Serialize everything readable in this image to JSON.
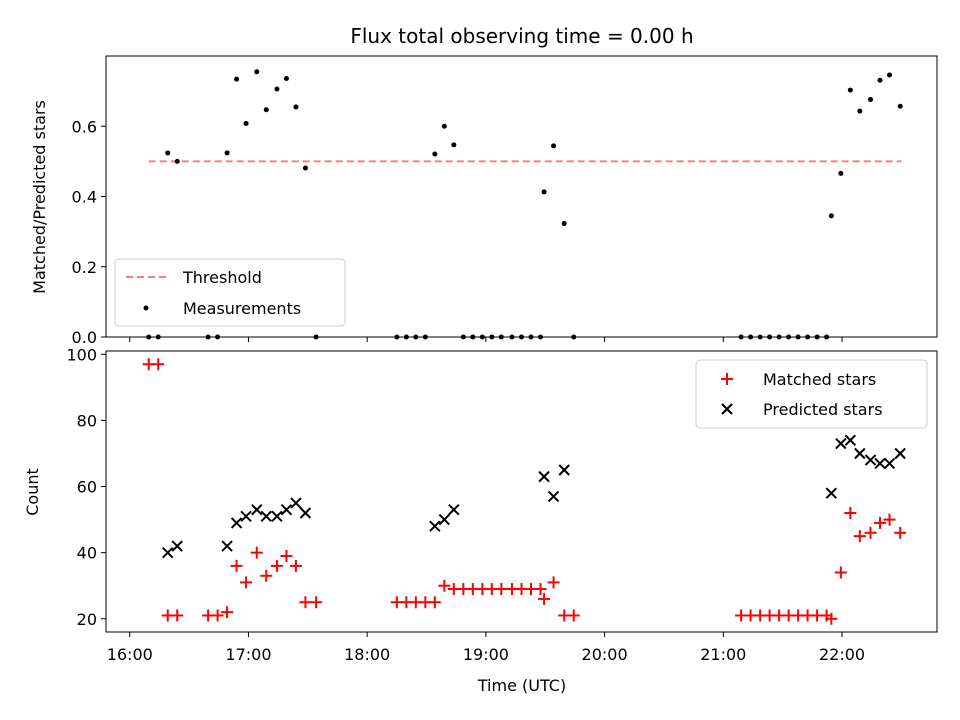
{
  "chart_data": {
    "title": "Flux total observing time = 0.00 h",
    "xlabel": "Time (UTC)",
    "x_unit": "hour of day (UTC)",
    "xlim": [
      15.8,
      22.8
    ],
    "xticks": [
      16,
      17,
      18,
      19,
      20,
      21,
      22
    ],
    "xtick_labels": [
      "16:00",
      "17:00",
      "18:00",
      "19:00",
      "20:00",
      "21:00",
      "22:00"
    ],
    "panels": [
      {
        "type": "scatter",
        "ylabel": "Matched/Predicted stars",
        "ylim": [
          0,
          0.8
        ],
        "yticks": [
          0.0,
          0.2,
          0.4,
          0.6
        ],
        "ytick_labels": [
          "0.0",
          "0.2",
          "0.4",
          "0.6"
        ],
        "legend_position": "lower-left",
        "threshold": {
          "name": "Threshold",
          "y": 0.5,
          "x_start": 16.16,
          "x_end": 22.5,
          "color": "#f77f7f",
          "style": "dashed"
        },
        "series": [
          {
            "name": "Measurements",
            "color": "#000000",
            "marker": "dot",
            "x": [
              16.16,
              16.24,
              16.32,
              16.4,
              16.66,
              16.74,
              16.82,
              16.9,
              16.98,
              17.07,
              17.15,
              17.24,
              17.32,
              17.4,
              17.48,
              17.57,
              18.25,
              18.33,
              18.41,
              18.49,
              18.57,
              18.65,
              18.73,
              18.81,
              18.89,
              18.97,
              19.05,
              19.13,
              19.22,
              19.3,
              19.38,
              19.46,
              19.49,
              19.57,
              19.66,
              19.74,
              21.15,
              21.23,
              21.31,
              21.39,
              21.47,
              21.55,
              21.63,
              21.71,
              21.79,
              21.87,
              21.91,
              21.99,
              22.07,
              22.15,
              22.24,
              22.32,
              22.4,
              22.49
            ],
            "y": [
              0.0,
              0.0,
              0.524,
              0.5,
              0.0,
              0.0,
              0.524,
              0.734,
              0.608,
              0.755,
              0.647,
              0.706,
              0.736,
              0.655,
              0.481,
              0.0,
              0.0,
              0.0,
              0.0,
              0.0,
              0.521,
              0.6,
              0.547,
              0.0,
              0.0,
              0.0,
              0.0,
              0.0,
              0.0,
              0.0,
              0.0,
              0.0,
              0.413,
              0.544,
              0.323,
              0.0,
              0.0,
              0.0,
              0.0,
              0.0,
              0.0,
              0.0,
              0.0,
              0.0,
              0.0,
              0.0,
              0.345,
              0.466,
              0.703,
              0.643,
              0.676,
              0.731,
              0.746,
              0.657
            ]
          }
        ]
      },
      {
        "type": "scatter",
        "ylabel": "Count",
        "ylim": [
          16,
          101
        ],
        "yticks": [
          20,
          40,
          60,
          80,
          100
        ],
        "ytick_labels": [
          "20",
          "40",
          "60",
          "80",
          "100"
        ],
        "legend_position": "upper-right",
        "series": [
          {
            "name": "Matched stars",
            "color": "#ff0000",
            "marker": "plus",
            "x": [
              16.16,
              16.24,
              16.32,
              16.4,
              16.66,
              16.74,
              16.82,
              16.9,
              16.98,
              17.07,
              17.15,
              17.24,
              17.32,
              17.4,
              17.48,
              17.57,
              18.25,
              18.33,
              18.41,
              18.49,
              18.57,
              18.65,
              18.73,
              18.81,
              18.89,
              18.97,
              19.05,
              19.13,
              19.22,
              19.3,
              19.38,
              19.46,
              19.49,
              19.57,
              19.66,
              19.74,
              21.15,
              21.23,
              21.31,
              21.39,
              21.47,
              21.55,
              21.63,
              21.71,
              21.79,
              21.87,
              21.91,
              21.99,
              22.07,
              22.15,
              22.24,
              22.32,
              22.4,
              22.49
            ],
            "y": [
              97,
              97,
              21,
              21,
              21,
              21,
              22,
              36,
              31,
              40,
              33,
              36,
              39,
              36,
              25,
              25,
              25,
              25,
              25,
              25,
              25,
              30,
              29,
              29,
              29,
              29,
              29,
              29,
              29,
              29,
              29,
              29,
              26,
              31,
              21,
              21,
              21,
              21,
              21,
              21,
              21,
              21,
              21,
              21,
              21,
              21,
              20,
              34,
              52,
              45,
              46,
              49,
              50,
              46
            ]
          },
          {
            "name": "Predicted stars",
            "color": "#000000",
            "marker": "x",
            "x": [
              16.32,
              16.4,
              16.82,
              16.9,
              16.98,
              17.07,
              17.15,
              17.24,
              17.32,
              17.4,
              17.48,
              18.57,
              18.65,
              18.73,
              19.49,
              19.57,
              19.66,
              21.91,
              21.99,
              22.07,
              22.15,
              22.24,
              22.32,
              22.4,
              22.49
            ],
            "y": [
              40,
              42,
              42,
              49,
              51,
              53,
              51,
              51,
              53,
              55,
              52,
              48,
              50,
              53,
              63,
              57,
              65,
              58,
              73,
              74,
              70,
              68,
              67,
              67,
              70
            ]
          }
        ]
      }
    ]
  }
}
